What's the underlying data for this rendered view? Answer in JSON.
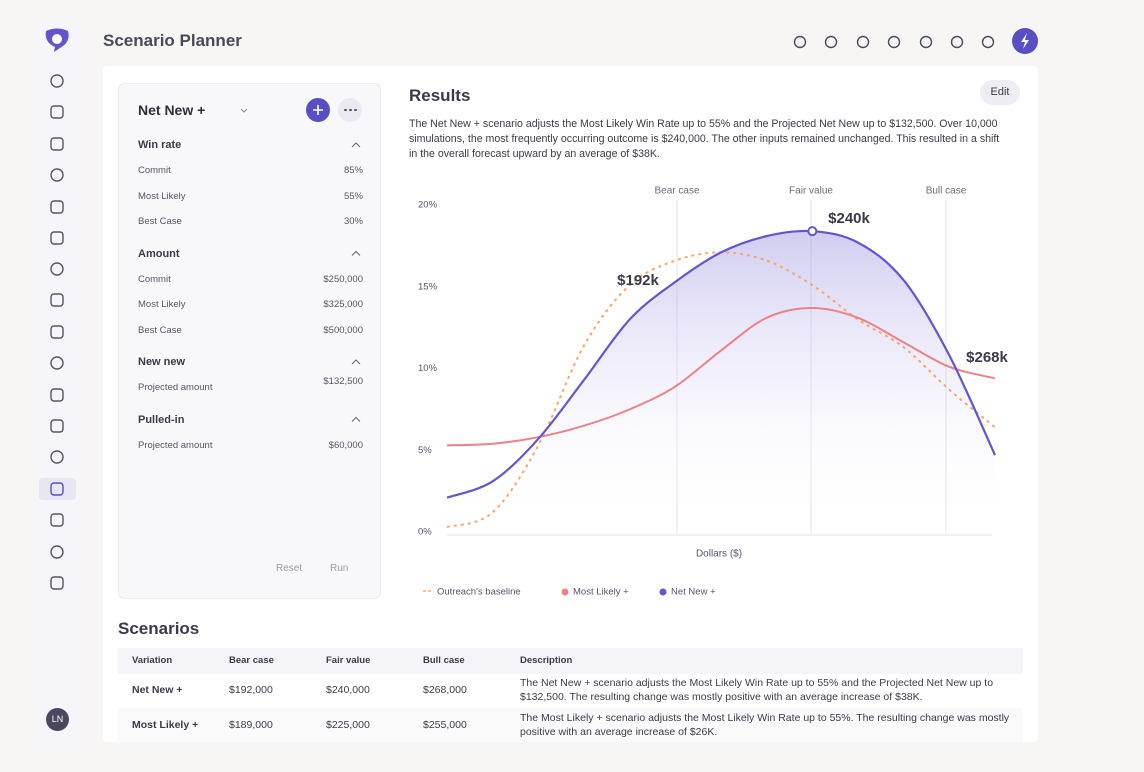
{
  "header": {
    "title": "Scenario Planner",
    "avatar": "LN"
  },
  "panel": {
    "title": "Net New +",
    "sections": [
      {
        "title": "Win rate",
        "rows": [
          [
            "Commit",
            "85%"
          ],
          [
            "Most Likely",
            "55%"
          ],
          [
            "Best Case",
            "30%"
          ]
        ]
      },
      {
        "title": "Amount",
        "rows": [
          [
            "Commit",
            "$250,000"
          ],
          [
            "Most Likely",
            "$325,000"
          ],
          [
            "Best Case",
            "$500,000"
          ]
        ]
      },
      {
        "title": "New new",
        "rows": [
          [
            "Projected amount",
            "$132,500"
          ]
        ]
      },
      {
        "title": "Pulled-in",
        "rows": [
          [
            "Projected amount",
            "$60,000"
          ]
        ]
      }
    ],
    "buttons": [
      "Reset",
      "Run"
    ]
  },
  "results": {
    "title": "Results",
    "edit": "Edit",
    "description": "The Net New + scenario adjusts the Most Likely Win Rate up to 55% and the Projected Net New up to $132,500. Over 10,000 simulations, the most frequently occurring outcome is $240,000. The other inputs remained unchanged. This resulted in a shift in the overall forecast upward by an average of $38K."
  },
  "chart_data": {
    "type": "line",
    "x_label": "Dollars ($)",
    "categories": [
      null,
      null,
      null,
      null,
      null,
      null,
      null,
      null,
      null,
      null,
      null,
      null,
      null
    ],
    "reference_lines": [
      "Bear case",
      "Fair value",
      "Bull case"
    ],
    "annotations": [
      "$192k",
      "$240k",
      "$268k"
    ],
    "ylim": [
      0,
      20
    ],
    "yticks": [
      {
        "value": 0,
        "label": "0%"
      },
      {
        "value": 5,
        "label": "5%"
      },
      {
        "value": 10,
        "label": "10%"
      },
      {
        "value": 15,
        "label": "15%"
      },
      {
        "value": 20,
        "label": "20%"
      }
    ],
    "grid": false,
    "series": [
      {
        "name": "Outreach's baseline",
        "color": "#f2a672",
        "dashed": true,
        "values": [
          0.3,
          1.2,
          5.3,
          11.4,
          15.1,
          16.6,
          17.1,
          16.6,
          15.1,
          13.0,
          11.3,
          8.7,
          6.4
        ]
      },
      {
        "name": "Most Likely +",
        "color": "#e8838a",
        "values": [
          5.3,
          5.4,
          5.8,
          6.5,
          7.5,
          8.9,
          11.1,
          13.1,
          13.7,
          13.1,
          11.6,
          10.1,
          9.4
        ]
      },
      {
        "name": "Net New +",
        "color": "#6355cf",
        "values": [
          2.1,
          3.1,
          5.7,
          9.3,
          13.0,
          15.3,
          17.1,
          18.1,
          18.4,
          17.7,
          15.4,
          10.8,
          4.7
        ]
      }
    ]
  },
  "scenarios": {
    "title": "Scenarios",
    "columns": [
      "Variation",
      "Bear case",
      "Fair value",
      "Bull case",
      "Description"
    ],
    "rows": [
      [
        "Net New +",
        "$192,000",
        "$240,000",
        "$268,000",
        "The Net New + scenario adjusts the Most Likely Win Rate up to 55% and the Projected Net New up to $132,500. The resulting change was mostly positive with an average increase of $38K."
      ],
      [
        "Most Likely +",
        "$189,000",
        "$225,000",
        "$255,000",
        "The Most Likely + scenario adjusts the Most Likely Win Rate up to 55%. The resulting change was mostly positive with an average increase of $26K."
      ]
    ]
  }
}
